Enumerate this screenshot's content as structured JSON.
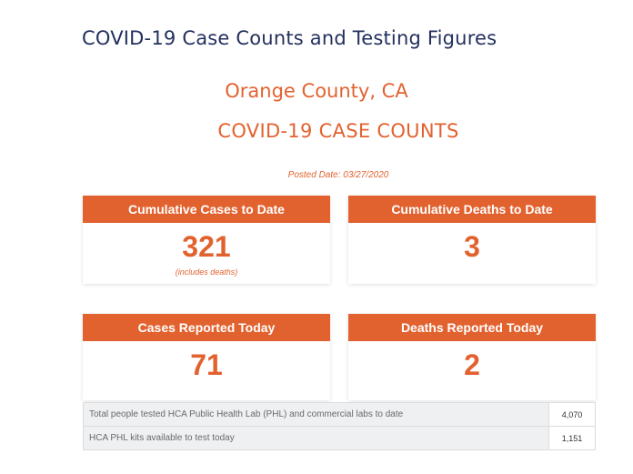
{
  "page": {
    "title": "COVID-19 Case Counts and Testing Figures",
    "county": "Orange County, CA",
    "section_title": "COVID-19 CASE COUNTS",
    "posted_date": "Posted Date: 03/27/2020"
  },
  "cards": {
    "cumulative_cases": {
      "label": "Cumulative Cases to Date",
      "value": "321",
      "note": "(includes deaths)"
    },
    "cumulative_deaths": {
      "label": "Cumulative Deaths to Date",
      "value": "3"
    },
    "cases_today": {
      "label": "Cases Reported Today",
      "value": "71"
    },
    "deaths_today": {
      "label": "Deaths Reported Today",
      "value": "2"
    }
  },
  "testing": [
    {
      "label": "Total people tested HCA Public Health Lab (PHL) and commercial labs to date",
      "value": "4,070"
    },
    {
      "label": "HCA PHL kits available to test today",
      "value": "1,151"
    }
  ],
  "colors": {
    "accent": "#e2622f",
    "title": "#24305e"
  }
}
